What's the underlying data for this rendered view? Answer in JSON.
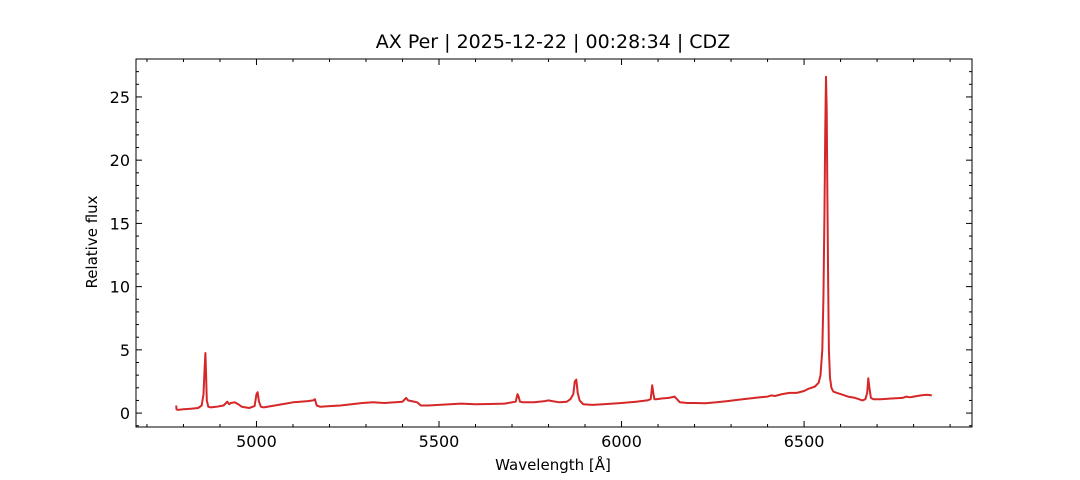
{
  "chart_data": {
    "type": "line",
    "title": "AX Per | 2025-12-22 | 00:28:34 | CDZ",
    "xlabel": "Wavelength [Å]",
    "ylabel": "Relative flux",
    "xlim": [
      4670,
      6960
    ],
    "ylim": [
      -1.1,
      28
    ],
    "xticks": [
      5000,
      5500,
      6000,
      6500
    ],
    "yticks": [
      0,
      5,
      10,
      15,
      20,
      25
    ],
    "xminor_step": 100,
    "yminor_step": 1,
    "grid": false,
    "line_color": "#d62728",
    "series": [
      {
        "x": [
          4780,
          4781,
          4785,
          4800,
          4820,
          4840,
          4850,
          4855,
          4858,
          4860,
          4862,
          4864,
          4868,
          4875,
          4890,
          4910,
          4920,
          4925,
          4930,
          4940,
          4950,
          4960,
          4970,
          4980,
          4995,
          5000,
          5003,
          5007,
          5012,
          5020,
          5040,
          5060,
          5080,
          5100,
          5120,
          5140,
          5155,
          5160,
          5165,
          5175,
          5200,
          5230,
          5260,
          5290,
          5320,
          5350,
          5380,
          5400,
          5410,
          5415,
          5425,
          5440,
          5450,
          5470,
          5500,
          5530,
          5560,
          5600,
          5640,
          5680,
          5710,
          5715,
          5718,
          5722,
          5730,
          5760,
          5790,
          5800,
          5810,
          5830,
          5850,
          5860,
          5868,
          5872,
          5876,
          5880,
          5885,
          5895,
          5920,
          5950,
          6000,
          6040,
          6070,
          6080,
          6084,
          6087,
          6090,
          6095,
          6110,
          6130,
          6145,
          6160,
          6180,
          6200,
          6230,
          6260,
          6290,
          6320,
          6350,
          6380,
          6400,
          6410,
          6420,
          6440,
          6460,
          6480,
          6500,
          6510,
          6520,
          6530,
          6540,
          6545,
          6550,
          6553,
          6556,
          6558,
          6560,
          6562,
          6564,
          6566,
          6568,
          6571,
          6575,
          6580,
          6590,
          6600,
          6620,
          6640,
          6660,
          6668,
          6673,
          6676,
          6679,
          6683,
          6690,
          6710,
          6740,
          6770,
          6780,
          6790,
          6800,
          6820,
          6835,
          6850
        ],
        "y": [
          0.6,
          0.3,
          0.25,
          0.3,
          0.35,
          0.4,
          0.6,
          1.5,
          3.5,
          4.75,
          3.0,
          1.0,
          0.5,
          0.45,
          0.5,
          0.6,
          0.9,
          0.7,
          0.8,
          0.85,
          0.7,
          0.5,
          0.45,
          0.4,
          0.55,
          1.5,
          1.65,
          0.9,
          0.5,
          0.45,
          0.55,
          0.65,
          0.75,
          0.85,
          0.9,
          0.95,
          1.0,
          1.1,
          0.6,
          0.5,
          0.55,
          0.6,
          0.7,
          0.8,
          0.85,
          0.8,
          0.85,
          0.9,
          1.2,
          1.0,
          0.95,
          0.85,
          0.6,
          0.6,
          0.65,
          0.7,
          0.75,
          0.7,
          0.72,
          0.75,
          0.9,
          1.5,
          1.3,
          0.9,
          0.85,
          0.85,
          0.95,
          1.0,
          0.95,
          0.85,
          0.9,
          1.1,
          1.5,
          2.5,
          2.65,
          1.6,
          1.0,
          0.7,
          0.65,
          0.7,
          0.8,
          0.9,
          1.0,
          1.1,
          2.2,
          1.6,
          1.1,
          1.1,
          1.15,
          1.2,
          1.3,
          0.85,
          0.8,
          0.8,
          0.78,
          0.85,
          0.95,
          1.05,
          1.15,
          1.25,
          1.3,
          1.4,
          1.35,
          1.5,
          1.6,
          1.6,
          1.75,
          1.9,
          2.0,
          2.1,
          2.4,
          3.0,
          5.0,
          9.0,
          16.0,
          22.0,
          26.6,
          24.0,
          17.0,
          10.0,
          5.0,
          2.8,
          2.0,
          1.7,
          1.6,
          1.5,
          1.3,
          1.2,
          1.0,
          1.1,
          1.6,
          2.75,
          2.0,
          1.2,
          1.1,
          1.1,
          1.15,
          1.2,
          1.3,
          1.25,
          1.3,
          1.4,
          1.45,
          1.4
        ]
      }
    ]
  }
}
